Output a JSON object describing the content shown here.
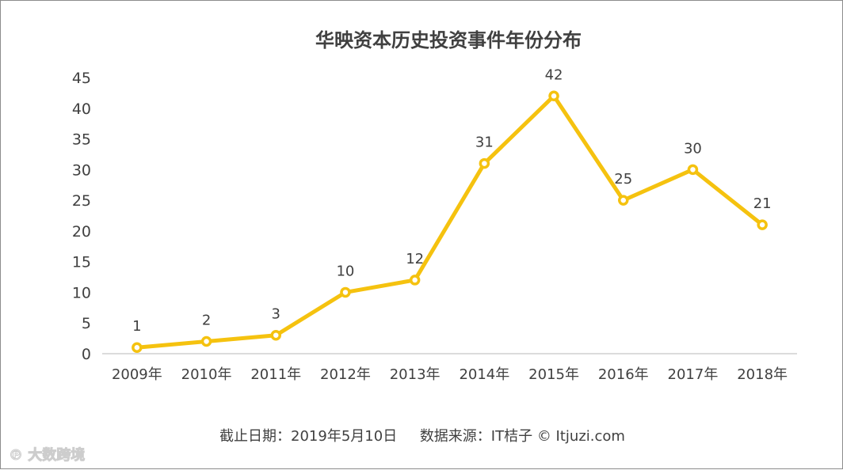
{
  "chart_data": {
    "type": "line",
    "title": "华映资本历史投资事件年份分布",
    "categories": [
      "2009年",
      "2010年",
      "2011年",
      "2012年",
      "2013年",
      "2014年",
      "2015年",
      "2016年",
      "2017年",
      "2018年"
    ],
    "series": [
      {
        "values": [
          1,
          2,
          3,
          10,
          12,
          31,
          42,
          25,
          30,
          21
        ]
      }
    ],
    "ylim": [
      0,
      45
    ],
    "yticks": [
      0,
      5,
      10,
      15,
      20,
      25,
      30,
      35,
      40,
      45
    ],
    "xlabel": "",
    "ylabel": "",
    "grid": false,
    "legend": "none",
    "data_labels": true,
    "colors": {
      "line": "#F5C20F",
      "marker_fill": "#ffffff",
      "text": "#404040",
      "axis": "#d0d0d0"
    }
  },
  "footer": {
    "date_label": "截止日期：2019年5月10日",
    "source_label": "数据来源：IT桔子 © Itjuzi.com"
  },
  "watermark": {
    "text": "大数跨境"
  }
}
